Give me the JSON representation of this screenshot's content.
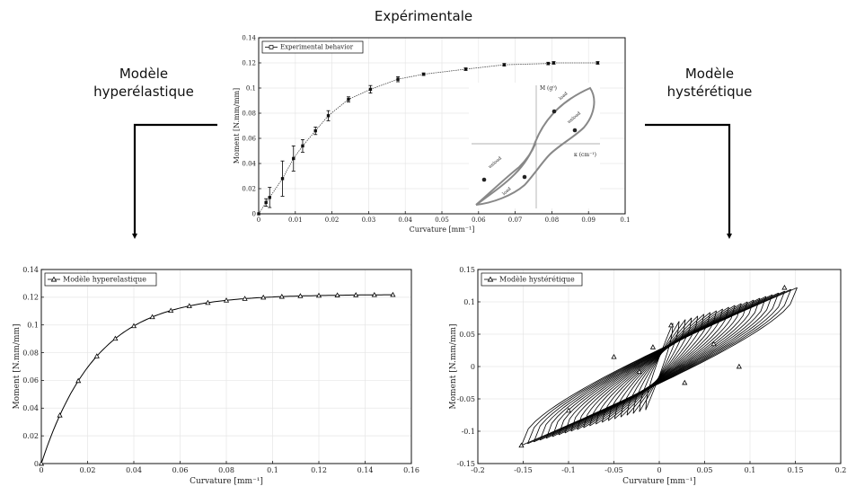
{
  "labels": {
    "top": "Expérimentale",
    "left_line1": "Modèle",
    "left_line2": "hyperélastique",
    "right_line1": "Modèle",
    "right_line2": "hystérétique"
  },
  "chart_data": [
    {
      "type": "scatter",
      "legend": "Experimental behavior",
      "legend_position": "top-left",
      "xlabel": "Curvature [mm⁻¹]",
      "ylabel": "Moment [N.mm/mm]",
      "xlim": [
        0,
        0.1
      ],
      "ylim": [
        0,
        0.14
      ],
      "xticks": [
        "0",
        "0.01",
        "0.02",
        "0.03",
        "0.04",
        "0.05",
        "0.06",
        "0.07",
        "0.08",
        "0.09",
        "0.1"
      ],
      "yticks": [
        "0",
        "0.02",
        "0.04",
        "0.06",
        "0.08",
        "0.1",
        "0.12",
        "0.14"
      ],
      "grid": true,
      "x": [
        0,
        0.002,
        0.003,
        0.0065,
        0.0095,
        0.012,
        0.0155,
        0.019,
        0.0245,
        0.0305,
        0.038,
        0.045,
        0.0565,
        0.067,
        0.079,
        0.0805,
        0.0925
      ],
      "y": [
        0,
        0.009,
        0.013,
        0.028,
        0.044,
        0.054,
        0.066,
        0.078,
        0.091,
        0.099,
        0.107,
        0.111,
        0.115,
        0.1185,
        0.1195,
        0.12,
        0.12
      ],
      "err": [
        0,
        0.003,
        0.008,
        0.014,
        0.01,
        0.005,
        0.003,
        0.004,
        0.002,
        0.003,
        0.002,
        0.001,
        0.001,
        0.001,
        0.001,
        0.001,
        0.001
      ],
      "inset": {
        "ylabel": "M (g⁰)",
        "xlabel": "κ (cm⁻¹)",
        "branch_labels": [
          "load",
          "unload",
          "unload",
          "load"
        ]
      }
    },
    {
      "type": "line",
      "legend": "Modèle hyperelastique",
      "legend_position": "top-left",
      "xlabel": "Curvature [mm⁻¹]",
      "ylabel": "Moment [N.mm/mm]",
      "xlim": [
        0,
        0.16
      ],
      "ylim": [
        0,
        0.14
      ],
      "xticks": [
        "0",
        "0.02",
        "0.04",
        "0.06",
        "0.08",
        "0.1",
        "0.12",
        "0.14",
        "0.16"
      ],
      "yticks": [
        "0",
        "0.02",
        "0.04",
        "0.06",
        "0.08",
        "0.1",
        "0.12",
        "0.14"
      ],
      "grid": true,
      "Mmax": 0.122,
      "k": 42,
      "markers_x": [
        0,
        0.008,
        0.016,
        0.024,
        0.032,
        0.04,
        0.048,
        0.056,
        0.064,
        0.072,
        0.08,
        0.088,
        0.096,
        0.104,
        0.112,
        0.12,
        0.128,
        0.136,
        0.144,
        0.152
      ]
    },
    {
      "type": "line",
      "legend": "Modèle hystérétique",
      "legend_position": "top-left",
      "xlabel": "Curvature [mm⁻¹]",
      "ylabel": "Moment [N.mm/mm]",
      "xlim": [
        -0.2,
        0.2
      ],
      "ylim": [
        -0.15,
        0.15
      ],
      "xticks": [
        "-0.2",
        "-0.15",
        "-0.1",
        "-0.05",
        "0",
        "0.05",
        "0.1",
        "0.15",
        "0.2"
      ],
      "yticks": [
        "-0.15",
        "-0.1",
        "-0.05",
        "0",
        "0.05",
        "0.1",
        "0.15"
      ],
      "grid": true,
      "loops": 21,
      "amp_min": 0.015,
      "amp_max": 0.152,
      "Mmax": 0.122,
      "markers": [
        [
          -0.152,
          -0.122
        ],
        [
          -0.1,
          -0.068
        ],
        [
          -0.05,
          0.015
        ],
        [
          -0.022,
          -0.008
        ],
        [
          -0.007,
          0.03
        ],
        [
          0.013,
          0.064
        ],
        [
          0.028,
          -0.025
        ],
        [
          0.06,
          0.035
        ],
        [
          0.088,
          0.0
        ],
        [
          0.138,
          0.122
        ]
      ]
    }
  ]
}
